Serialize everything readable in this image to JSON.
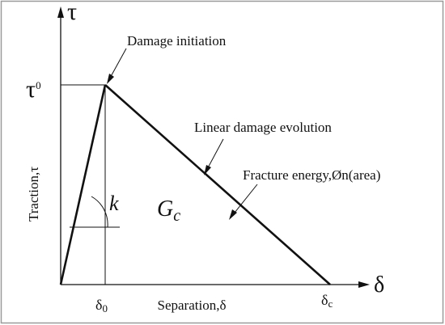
{
  "axes": {
    "y_symbol": "τ",
    "x_symbol": "δ",
    "y_label": "Traction,τ",
    "x_label": "Separation,δ"
  },
  "points": {
    "peak_traction": {
      "base": "τ",
      "sub": "0"
    },
    "initiation_sep": {
      "base": "δ",
      "sub": "0"
    },
    "final_sep": {
      "base": "δ",
      "sub": "c"
    }
  },
  "annotations": {
    "damage_initiation": "Damage initiation",
    "linear_evolution": "Linear damage evolution",
    "fracture_energy": "Fracture energy,Øn(area)",
    "stiffness": "k",
    "gc_base": "G",
    "gc_sub": "c"
  },
  "model": {
    "type": "bilinear traction-separation law",
    "segments": [
      "linear elastic loading",
      "linear softening"
    ]
  },
  "colors": {
    "line": "#111111",
    "frame": "#9a9a9a",
    "background": "#ffffff"
  }
}
